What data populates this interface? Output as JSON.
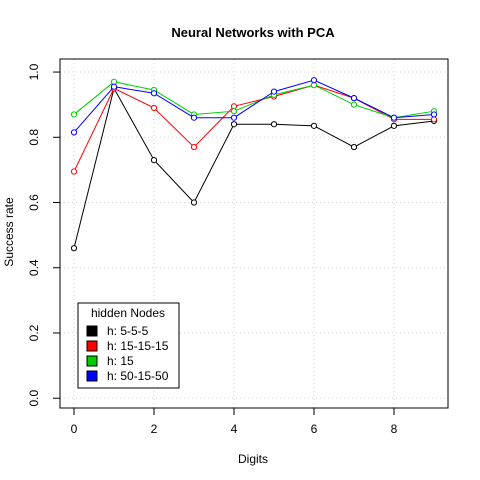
{
  "chart_data": {
    "type": "line",
    "title": "Neural Networks with PCA",
    "xlabel": "Digits",
    "ylabel": "Success rate",
    "xlim": [
      -0.35,
      9.35
    ],
    "ylim": [
      -0.03,
      1.04
    ],
    "xticks": [
      0,
      2,
      4,
      6,
      8
    ],
    "yticks": [
      0.0,
      0.2,
      0.4,
      0.6,
      0.8,
      1.0
    ],
    "xtick_labels": [
      "0",
      "2",
      "4",
      "6",
      "8"
    ],
    "ytick_labels": [
      "0.0",
      "0.2",
      "0.4",
      "0.6",
      "0.8",
      "1.0"
    ],
    "grid": true,
    "legend_title": "hidden Nodes",
    "legend_position": "bottom-left",
    "x": [
      0,
      1,
      2,
      3,
      4,
      5,
      6,
      7,
      8,
      9
    ],
    "series": [
      {
        "name": "h: 5-5-5",
        "color": "#000000",
        "values": [
          0.46,
          0.95,
          0.73,
          0.6,
          0.84,
          0.84,
          0.835,
          0.77,
          0.835,
          0.85
        ]
      },
      {
        "name": "h: 15-15-15",
        "color": "#ff0000",
        "values": [
          0.695,
          0.95,
          0.89,
          0.77,
          0.895,
          0.925,
          0.96,
          0.92,
          0.855,
          0.855
        ]
      },
      {
        "name": "h: 15",
        "color": "#00cd00",
        "values": [
          0.87,
          0.97,
          0.945,
          0.87,
          0.88,
          0.93,
          0.96,
          0.9,
          0.86,
          0.88
        ]
      },
      {
        "name": "h: 50-15-50",
        "color": "#0000ff",
        "values": [
          0.815,
          0.955,
          0.935,
          0.86,
          0.86,
          0.94,
          0.975,
          0.92,
          0.86,
          0.87
        ]
      }
    ]
  }
}
